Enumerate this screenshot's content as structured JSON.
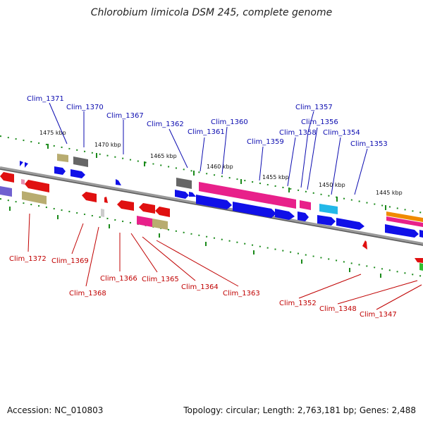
{
  "title": "Chlorobium limicola DSM 245, complete genome",
  "accession": "Accession: NC_010803",
  "topology": "Topology: circular; Length: 2,763,181 bp; Genes: 2,488",
  "colors": {
    "backbone": "#808080",
    "tick": "#1a8a1a",
    "label_top": "#0b0bb0",
    "label_bottom": "#c00000",
    "gene_blue": "#1010e8",
    "gene_red": "#e01010",
    "gene_pink": "#e8208a",
    "gene_gray": "#666666",
    "gene_olive": "#b8ac70",
    "gene_cyan": "#22b8e8",
    "gene_orange": "#f08a00",
    "gene_purple": "#7060d0",
    "gene_lightpink": "#e890b0"
  },
  "kbp_labels": [
    "1475 kbp",
    "1470 kbp",
    "1465 kbp",
    "1460 kbp",
    "1455 kbp",
    "1450 kbp",
    "1445 kbp"
  ],
  "top_labels": [
    "Clim_1371",
    "Clim_1370",
    "Clim_1367",
    "Clim_1362",
    "Clim_1361",
    "Clim_1360",
    "Clim_1359",
    "Clim_1358",
    "Clim_1357",
    "Clim_1356",
    "Clim_1354",
    "Clim_1353"
  ],
  "bottom_labels": [
    "Clim_1372",
    "Clim_1369",
    "Clim_1368",
    "Clim_1366",
    "Clim_1365",
    "Clim_1364",
    "Clim_1363",
    "Clim_1352",
    "Clim_1348",
    "Clim_1347"
  ]
}
